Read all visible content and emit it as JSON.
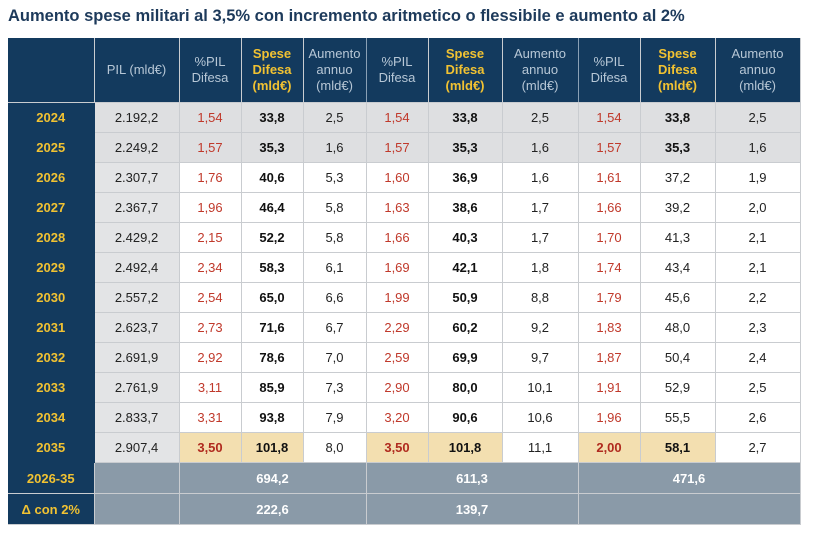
{
  "title": "Aumento spese militari al 3,5% con incremento aritmetico o flessibile e aumento al 2%",
  "headers": {
    "pil": "PIL (mld€)",
    "pct": [
      "%PIL",
      "Difesa"
    ],
    "spese": [
      "Spese",
      "Difesa",
      "(mld€)"
    ],
    "aumento": [
      "Aumento",
      "annuo",
      "(mld€)"
    ]
  },
  "rows": [
    {
      "year": "2024",
      "pil": "2.192,2",
      "s1": [
        "1,54",
        "33,8",
        "2,5"
      ],
      "s2": [
        "1,54",
        "33,8",
        "2,5"
      ],
      "s3": [
        "1,54",
        "33,8",
        "2,5"
      ]
    },
    {
      "year": "2025",
      "pil": "2.249,2",
      "s1": [
        "1,57",
        "35,3",
        "1,6"
      ],
      "s2": [
        "1,57",
        "35,3",
        "1,6"
      ],
      "s3": [
        "1,57",
        "35,3",
        "1,6"
      ]
    },
    {
      "year": "2026",
      "pil": "2.307,7",
      "s1": [
        "1,76",
        "40,6",
        "5,3"
      ],
      "s2": [
        "1,60",
        "36,9",
        "1,6"
      ],
      "s3": [
        "1,61",
        "37,2",
        "1,9"
      ]
    },
    {
      "year": "2027",
      "pil": "2.367,7",
      "s1": [
        "1,96",
        "46,4",
        "5,8"
      ],
      "s2": [
        "1,63",
        "38,6",
        "1,7"
      ],
      "s3": [
        "1,66",
        "39,2",
        "2,0"
      ]
    },
    {
      "year": "2028",
      "pil": "2.429,2",
      "s1": [
        "2,15",
        "52,2",
        "5,8"
      ],
      "s2": [
        "1,66",
        "40,3",
        "1,7"
      ],
      "s3": [
        "1,70",
        "41,3",
        "2,1"
      ]
    },
    {
      "year": "2029",
      "pil": "2.492,4",
      "s1": [
        "2,34",
        "58,3",
        "6,1"
      ],
      "s2": [
        "1,69",
        "42,1",
        "1,8"
      ],
      "s3": [
        "1,74",
        "43,4",
        "2,1"
      ]
    },
    {
      "year": "2030",
      "pil": "2.557,2",
      "s1": [
        "2,54",
        "65,0",
        "6,6"
      ],
      "s2": [
        "1,99",
        "50,9",
        "8,8"
      ],
      "s3": [
        "1,79",
        "45,6",
        "2,2"
      ]
    },
    {
      "year": "2031",
      "pil": "2.623,7",
      "s1": [
        "2,73",
        "71,6",
        "6,7"
      ],
      "s2": [
        "2,29",
        "60,2",
        "9,2"
      ],
      "s3": [
        "1,83",
        "48,0",
        "2,3"
      ]
    },
    {
      "year": "2032",
      "pil": "2.691,9",
      "s1": [
        "2,92",
        "78,6",
        "7,0"
      ],
      "s2": [
        "2,59",
        "69,9",
        "9,7"
      ],
      "s3": [
        "1,87",
        "50,4",
        "2,4"
      ]
    },
    {
      "year": "2033",
      "pil": "2.761,9",
      "s1": [
        "3,11",
        "85,9",
        "7,3"
      ],
      "s2": [
        "2,90",
        "80,0",
        "10,1"
      ],
      "s3": [
        "1,91",
        "52,9",
        "2,5"
      ]
    },
    {
      "year": "2034",
      "pil": "2.833,7",
      "s1": [
        "3,31",
        "93,8",
        "7,9"
      ],
      "s2": [
        "3,20",
        "90,6",
        "10,6"
      ],
      "s3": [
        "1,96",
        "55,5",
        "2,6"
      ]
    },
    {
      "year": "2035",
      "pil": "2.907,4",
      "s1": [
        "3,50",
        "101,8",
        "8,0"
      ],
      "s2": [
        "3,50",
        "101,8",
        "11,1"
      ],
      "s3": [
        "2,00",
        "58,1",
        "2,7"
      ]
    }
  ],
  "footer": {
    "total_label": "2026-35",
    "totals": [
      "694,2",
      "611,3",
      "471,6"
    ],
    "delta_label": "Δ con 2%",
    "deltas": [
      "222,6",
      "139,7"
    ]
  }
}
